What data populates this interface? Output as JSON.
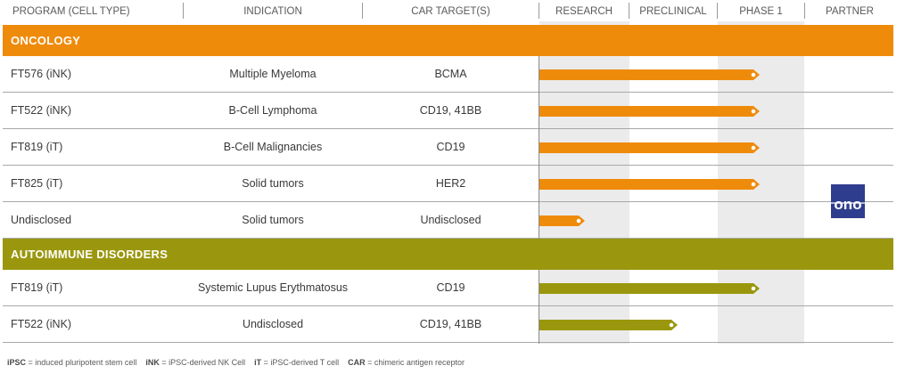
{
  "header": {
    "program": "PROGRAM (CELL TYPE)",
    "indication": "INDICATION",
    "target": "CAR TARGET(S)",
    "research": "RESEARCH",
    "preclinical": "PRECLINICAL",
    "phase1": "PHASE 1",
    "partner": "PARTNER"
  },
  "colors": {
    "oncology": "#ef8b0b",
    "autoimmune": "#9a970e",
    "column_shade": "#ebebeb",
    "partner_logo": "#2f3d8f"
  },
  "sections": {
    "oncology": {
      "title": "ONCOLOGY",
      "rows": [
        {
          "program": "FT576 (iNK)",
          "indication": "Multiple Myeloma",
          "target": "BCMA",
          "stage": "Phase 1",
          "progress": 0.83
        },
        {
          "program": "FT522 (iNK)",
          "indication": "B-Cell Lymphoma",
          "target": "CD19, 41BB",
          "stage": "Phase 1",
          "progress": 0.83
        },
        {
          "program": "FT819 (iT)",
          "indication": "B-Cell Malignancies",
          "target": "CD19",
          "stage": "Phase 1",
          "progress": 0.83
        },
        {
          "program": "FT825 (iT)",
          "indication": "Solid tumors",
          "target": "HER2",
          "stage": "Phase 1",
          "progress": 0.83
        },
        {
          "program": "Undisclosed",
          "indication": "Solid tumors",
          "target": "Undisclosed",
          "stage": "Research",
          "progress": 0.17
        }
      ]
    },
    "autoimmune": {
      "title": "AUTOIMMUNE DISORDERS",
      "rows": [
        {
          "program": "FT819 (iT)",
          "indication": "Systemic Lupus Erythmatosus",
          "target": "CD19",
          "stage": "Phase 1",
          "progress": 0.83
        },
        {
          "program": "FT522 (iNK)",
          "indication": "Undisclosed",
          "target": "CD19, 41BB",
          "stage": "Preclinical",
          "progress": 0.52
        }
      ]
    }
  },
  "partner": {
    "text": "ono",
    "icon": "ono-logo-icon"
  },
  "footnote": {
    "ipsc_abbr": "iPSC",
    "ipsc_def": " = induced pluripotent stem cell",
    "ink_abbr": "iNK",
    "ink_def": " = iPSC-derived NK Cell",
    "it_abbr": "iT",
    "it_def": " = iPSC-derived T cell",
    "car_abbr": "CAR",
    "car_def": " = chimeric antigen receptor"
  }
}
